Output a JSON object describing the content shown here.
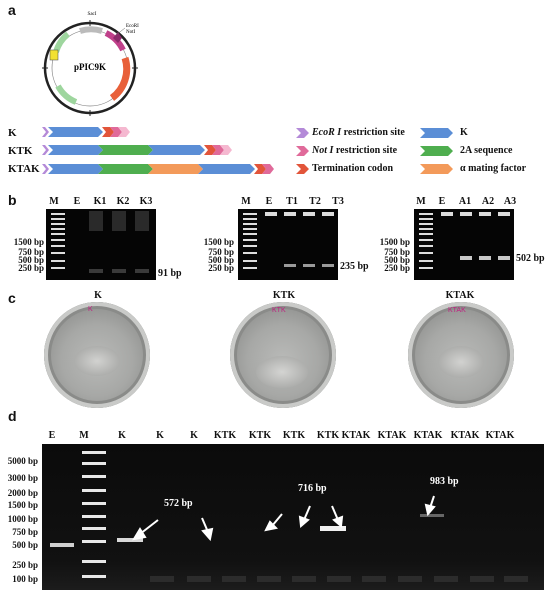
{
  "panels": {
    "a": "a",
    "b": "b",
    "c": "c",
    "d": "d"
  },
  "plasmid": {
    "name": "pPIC9K",
    "sites": [
      "SacI",
      "EcoRI",
      "NotI"
    ]
  },
  "constructs": [
    {
      "label": "K"
    },
    {
      "label": "KTK"
    },
    {
      "label": "KTAK"
    }
  ],
  "legend": {
    "items": [
      {
        "text_em": "EcoR I",
        "text": " restriction site",
        "color": "#b48ad8"
      },
      {
        "text_em": "",
        "text": "K",
        "color": "#5b8ed6"
      },
      {
        "text_em": "Not I",
        "text": " restriction site",
        "color": "#e06a9a"
      },
      {
        "text_em": "",
        "text": "2A sequence",
        "color": "#4fae4f"
      },
      {
        "text_em": "",
        "text": "Termination codon",
        "color": "#e2553a"
      },
      {
        "text_em": "",
        "text": "α mating factor",
        "color": "#f39a5a"
      }
    ]
  },
  "gel_b": {
    "gels": [
      {
        "lanes": [
          "M",
          "E",
          "K1",
          "K2",
          "K3"
        ],
        "ladder": [
          "1500 bp",
          "750 bp",
          "500 bp",
          "250 bp"
        ],
        "product": "91 bp"
      },
      {
        "lanes": [
          "M",
          "E",
          "T1",
          "T2",
          "T3"
        ],
        "ladder": [
          "1500 bp",
          "750 bp",
          "500 bp",
          "250 bp"
        ],
        "product": "235 bp"
      },
      {
        "lanes": [
          "M",
          "E",
          "A1",
          "A2",
          "A3"
        ],
        "ladder": [
          "1500 bp",
          "750 bp",
          "500 bp",
          "250 bp"
        ],
        "product": "502 bp"
      }
    ]
  },
  "plates_c": {
    "labels": [
      "K",
      "KTK",
      "KTAK"
    ],
    "plate_marks": [
      "K",
      "KTK",
      "KTAK"
    ]
  },
  "gel_d": {
    "lanes": [
      "E",
      "M",
      "K",
      "K",
      "K",
      "KTK",
      "KTK",
      "KTK",
      "KTK",
      "KTAK",
      "KTAK",
      "KTAK",
      "KTAK",
      "KTAK"
    ],
    "ladder": [
      "5000 bp",
      "3000 bp",
      "2000 bp",
      "1500 bp",
      "1000 bp",
      "750 bp",
      "500 bp",
      "250 bp",
      "100 bp"
    ],
    "annotations": [
      "572 bp",
      "716 bp",
      "983 bp"
    ]
  }
}
